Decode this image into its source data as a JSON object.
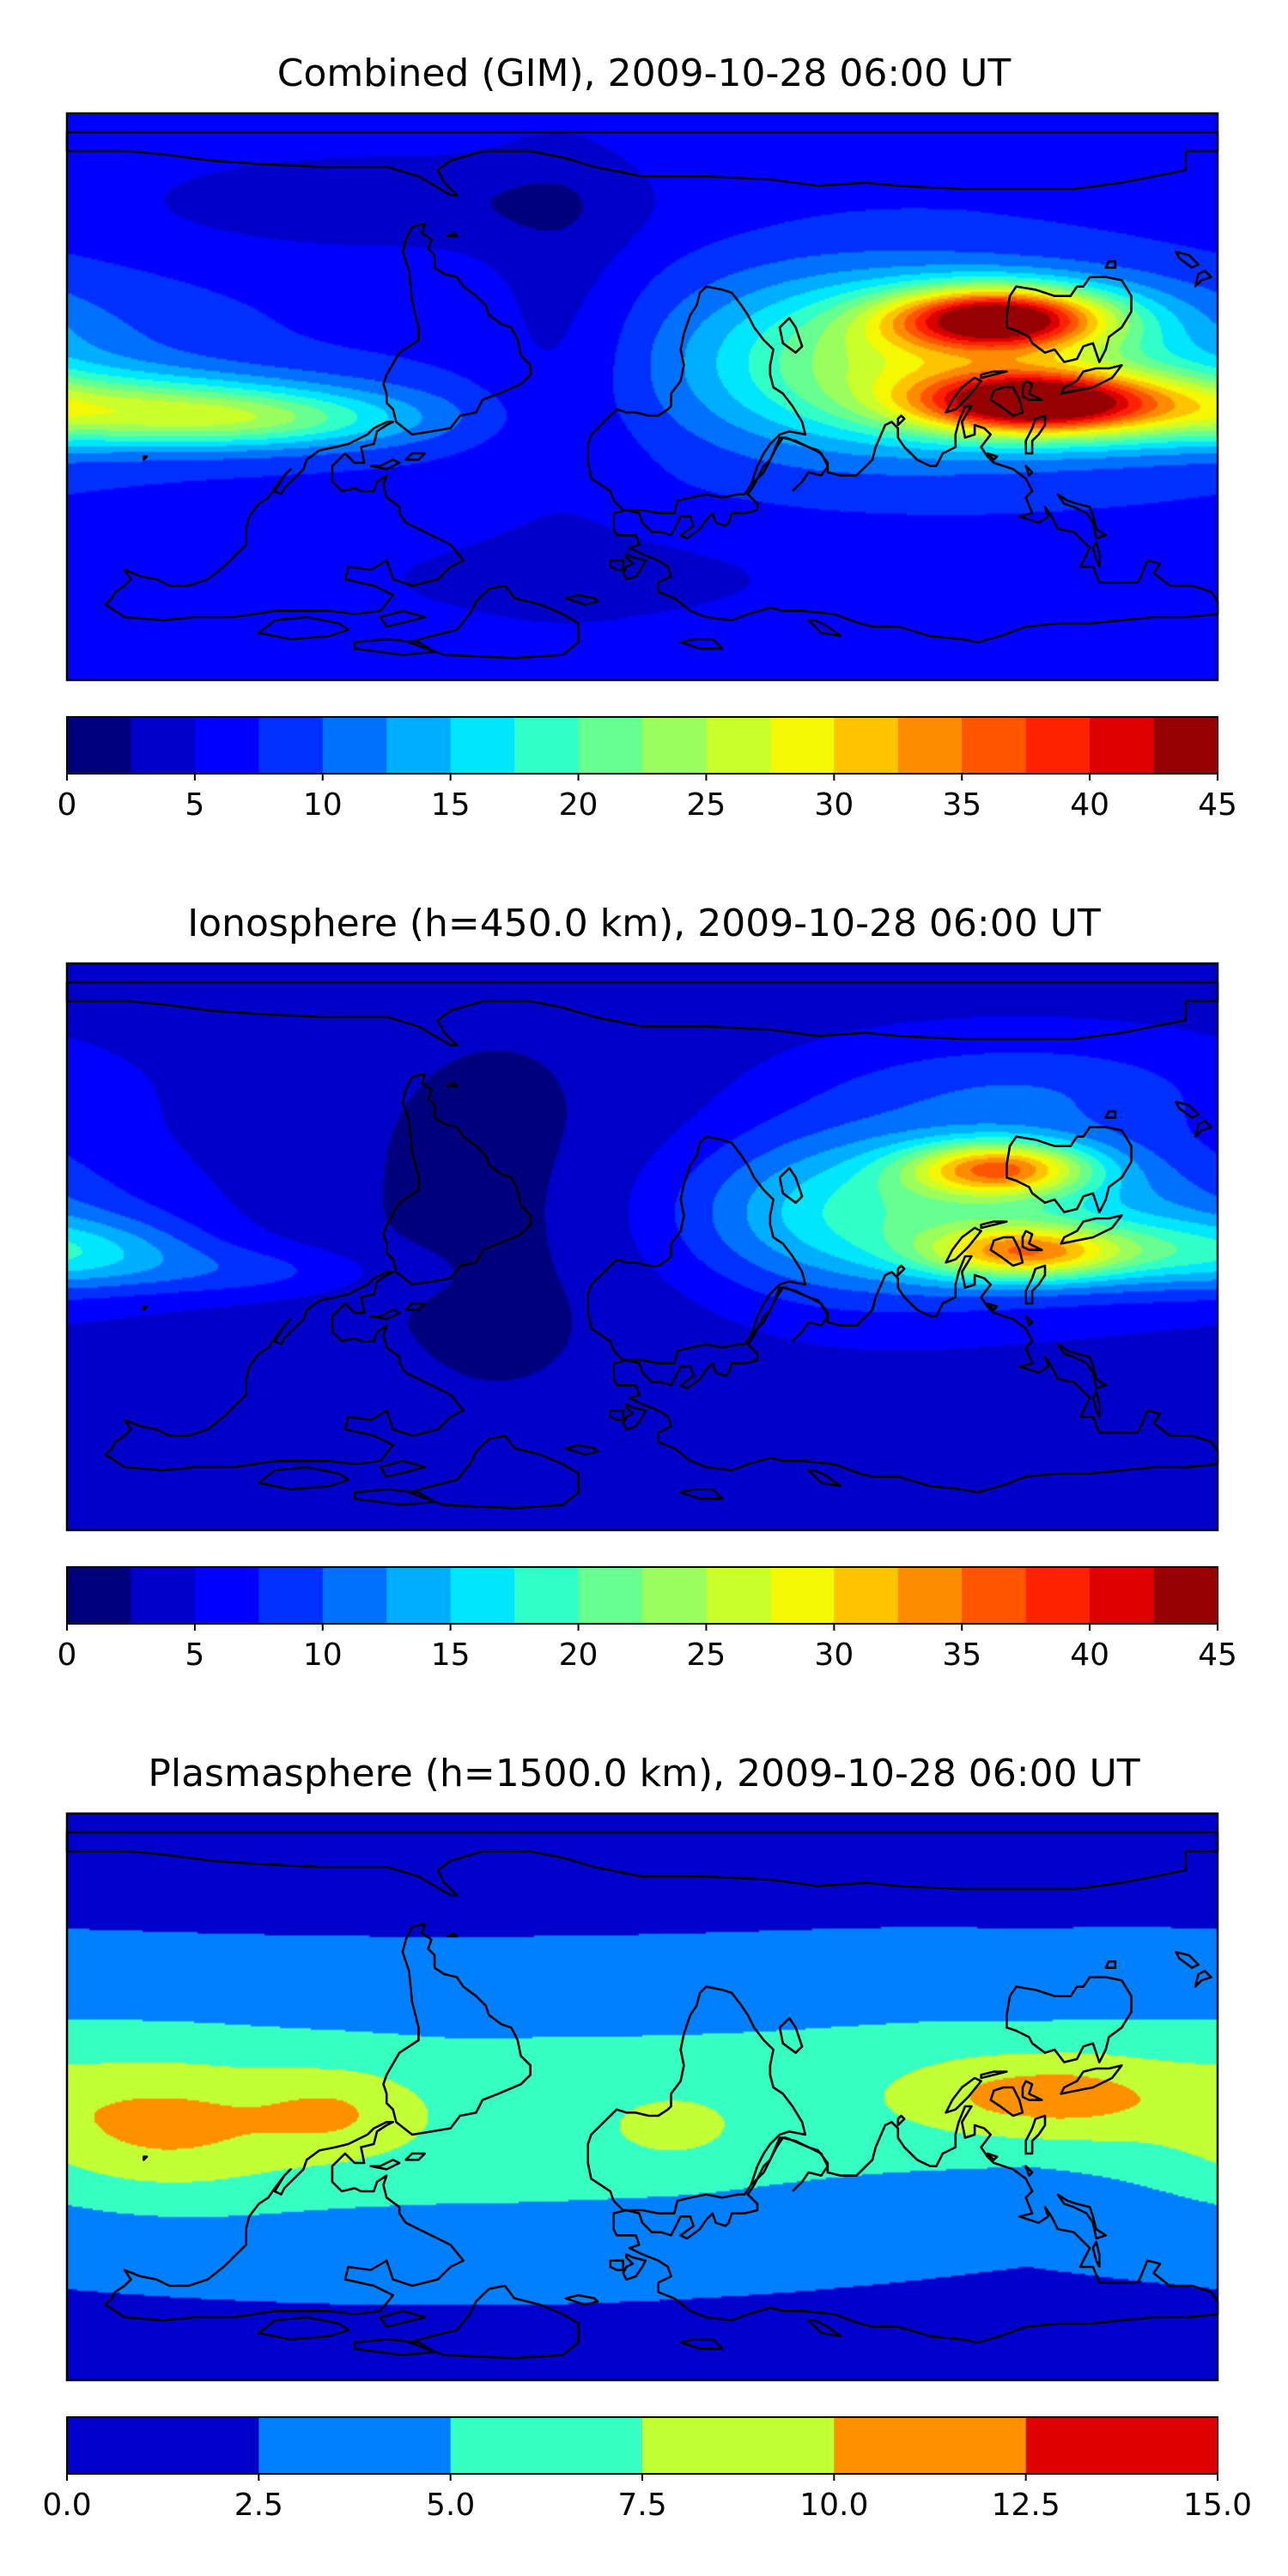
{
  "chart_data": [
    {
      "type": "heatmap",
      "title": "Combined (GIM), 2009-10-28 06:00 UT",
      "colorbar": {
        "min": 0,
        "max": 45,
        "step": 2.5,
        "ticks": [
          "0",
          "5",
          "10",
          "15",
          "20",
          "25",
          "30",
          "35",
          "40",
          "45"
        ],
        "colors": [
          "#00007f",
          "#0000c8",
          "#0000ff",
          "#0030ff",
          "#0070ff",
          "#00aeff",
          "#00e6ff",
          "#30ffc7",
          "#66ff90",
          "#9aff5d",
          "#caff2c",
          "#f4f802",
          "#ffc400",
          "#ff8c00",
          "#ff5400",
          "#ff2200",
          "#dc0000",
          "#970000"
        ]
      },
      "fields": {
        "base": 7.0,
        "blobs": [
          {
            "lon": 112,
            "lat": 25,
            "sx": 24,
            "sy": 7,
            "amp": 31
          },
          {
            "lon": 122,
            "lat": -2,
            "sx": 26,
            "sy": 7,
            "amp": 28
          },
          {
            "lon": 110,
            "lat": 10,
            "sx": 55,
            "sy": 18,
            "amp": 14
          },
          {
            "lon": 60,
            "lat": 12,
            "sx": 35,
            "sy": 20,
            "amp": 7
          },
          {
            "lon": -165,
            "lat": -4,
            "sx": 55,
            "sy": 8,
            "amp": 14
          },
          {
            "lon": -120,
            "lat": -8,
            "sx": 35,
            "sy": 6,
            "amp": 8
          },
          {
            "lon": -25,
            "lat": 25,
            "sx": 18,
            "sy": 50,
            "amp": -3
          },
          {
            "lon": -80,
            "lat": 62,
            "sx": 60,
            "sy": 12,
            "amp": -4
          },
          {
            "lon": -20,
            "lat": -58,
            "sx": 60,
            "sy": 12,
            "amp": -3
          }
        ]
      }
    },
    {
      "type": "heatmap",
      "title": "Ionosphere  (h=450.0 km), 2009-10-28 06:00 UT",
      "colorbar": {
        "min": 0,
        "max": 45,
        "step": 2.5,
        "ticks": [
          "0",
          "5",
          "10",
          "15",
          "20",
          "25",
          "30",
          "35",
          "40",
          "45"
        ],
        "colors": [
          "#00007f",
          "#0000c8",
          "#0000ff",
          "#0030ff",
          "#0070ff",
          "#00aeff",
          "#00e6ff",
          "#30ffc7",
          "#66ff90",
          "#9aff5d",
          "#caff2c",
          "#f4f802",
          "#ffc400",
          "#ff8c00",
          "#ff5400",
          "#ff2200",
          "#dc0000",
          "#970000"
        ]
      },
      "fields": {
        "base": 4.2,
        "blobs": [
          {
            "lon": 112,
            "lat": 25,
            "sx": 20,
            "sy": 6,
            "amp": 22
          },
          {
            "lon": 120,
            "lat": -2,
            "sx": 22,
            "sy": 6,
            "amp": 20
          },
          {
            "lon": 110,
            "lat": 10,
            "sx": 55,
            "sy": 17,
            "amp": 12
          },
          {
            "lon": 60,
            "lat": 12,
            "sx": 35,
            "sy": 20,
            "amp": 6
          },
          {
            "lon": 120,
            "lat": 50,
            "sx": 45,
            "sy": 12,
            "amp": 5
          },
          {
            "lon": -180,
            "lat": -2,
            "sx": 28,
            "sy": 8,
            "amp": 9
          },
          {
            "lon": -120,
            "lat": -8,
            "sx": 30,
            "sy": 6,
            "amp": 4
          },
          {
            "lon": -45,
            "lat": 10,
            "sx": 45,
            "sy": 60,
            "amp": -2.5
          }
        ]
      }
    },
    {
      "type": "heatmap",
      "title": "Plasmasphere (h=1500.0 km), 2009-10-28 06:00 UT",
      "colorbar": {
        "min": 0,
        "max": 15,
        "step": 2.5,
        "ticks": [
          "0.0",
          "2.5",
          "5.0",
          "7.5",
          "10.0",
          "12.5",
          "15.0"
        ],
        "colors": [
          "#0000cd",
          "#0080ff",
          "#35ffc2",
          "#c2ff35",
          "#ff9100",
          "#dc0000"
        ]
      },
      "fields": {
        "base": 1.8,
        "blobs": [
          {
            "lon": -60,
            "lat": -8,
            "sx": 140,
            "sy": 30,
            "amp": 4.6
          },
          {
            "lon": -150,
            "lat": -10,
            "sx": 30,
            "sy": 15,
            "amp": 4.5
          },
          {
            "lon": -95,
            "lat": -5,
            "sx": 18,
            "sy": 10,
            "amp": 3.2
          },
          {
            "lon": 125,
            "lat": 0,
            "sx": 30,
            "sy": 10,
            "amp": 5.5
          },
          {
            "lon": 10,
            "lat": -10,
            "sx": 15,
            "sy": 8,
            "amp": 2.2
          },
          {
            "lon": 120,
            "lat": 10,
            "sx": 70,
            "sy": 25,
            "amp": 2.0
          }
        ]
      }
    }
  ]
}
